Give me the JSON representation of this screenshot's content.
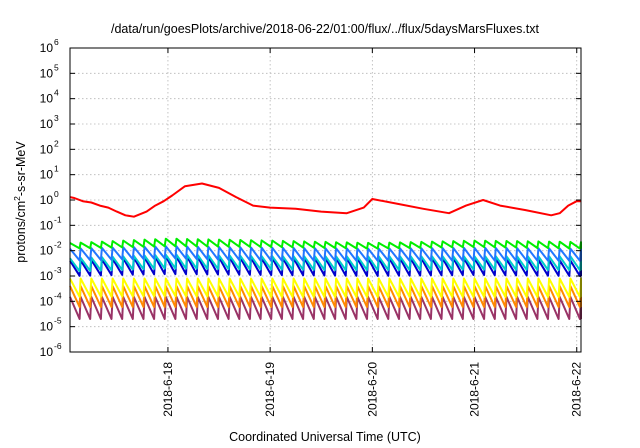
{
  "chart_data": {
    "type": "line",
    "title": "/data/run/goesPlots/archive/2018-06-22/01:00/flux/../flux/5daysMarsFluxes.txt",
    "xlabel": "Coordinated Universal Time (UTC)",
    "ylabel": "protons/cm2-s-sr-MeV",
    "ylabel_parts": {
      "base": "protons/cm",
      "sup": "2",
      "rest": "-s-sr-MeV"
    },
    "yscale": "log",
    "ylim": [
      1e-06,
      1000000.0
    ],
    "y_ticks": [
      {
        "base": "10",
        "exp": "-6",
        "value": 1e-06
      },
      {
        "base": "10",
        "exp": "-5",
        "value": 1e-05
      },
      {
        "base": "10",
        "exp": "-4",
        "value": 0.0001
      },
      {
        "base": "10",
        "exp": "-3",
        "value": 0.001
      },
      {
        "base": "10",
        "exp": "-2",
        "value": 0.01
      },
      {
        "base": "10",
        "exp": "-1",
        "value": 0.1
      },
      {
        "base": "10",
        "exp": "0",
        "value": 1
      },
      {
        "base": "10",
        "exp": "1",
        "value": 10
      },
      {
        "base": "10",
        "exp": "2",
        "value": 100
      },
      {
        "base": "10",
        "exp": "3",
        "value": 1000
      },
      {
        "base": "10",
        "exp": "4",
        "value": 10000
      },
      {
        "base": "10",
        "exp": "5",
        "value": 100000
      },
      {
        "base": "10",
        "exp": "6",
        "value": 1000000
      }
    ],
    "xlim": [
      "2018-06-17 01:00",
      "2018-06-22 01:00"
    ],
    "x_ticks": [
      {
        "label": "2018-6-18",
        "value": "2018-06-18 00:00"
      },
      {
        "label": "2018-6-19",
        "value": "2018-06-19 00:00"
      },
      {
        "label": "2018-6-20",
        "value": "2018-06-20 00:00"
      },
      {
        "label": "2018-6-21",
        "value": "2018-06-21 00:00"
      },
      {
        "label": "2018-6-22",
        "value": "2018-06-22 00:00"
      }
    ],
    "grid": true,
    "series": [
      {
        "color": "#ff0000",
        "x": [
          "2018-06-17 01:00",
          "2018-06-17 02:00",
          "2018-06-17 04:00",
          "2018-06-17 06:00",
          "2018-06-17 08:00",
          "2018-06-17 10:00",
          "2018-06-17 12:00",
          "2018-06-17 14:00",
          "2018-06-17 16:00",
          "2018-06-17 19:00",
          "2018-06-17 21:00",
          "2018-06-17 23:00",
          "2018-06-18 01:00",
          "2018-06-18 04:00",
          "2018-06-18 08:00",
          "2018-06-18 12:00",
          "2018-06-18 16:00",
          "2018-06-18 20:00",
          "2018-06-19 00:00",
          "2018-06-19 06:00",
          "2018-06-19 12:00",
          "2018-06-19 18:00",
          "2018-06-19 22:00",
          "2018-06-20 00:00",
          "2018-06-20 06:00",
          "2018-06-20 12:00",
          "2018-06-20 18:00",
          "2018-06-20 22:00",
          "2018-06-21 02:00",
          "2018-06-21 06:00",
          "2018-06-21 12:00",
          "2018-06-21 18:00",
          "2018-06-21 20:00",
          "2018-06-21 22:00",
          "2018-06-22 00:00",
          "2018-06-22 01:00"
        ],
        "y": [
          1.3,
          1.2,
          0.9,
          0.8,
          0.6,
          0.5,
          0.35,
          0.25,
          0.22,
          0.35,
          0.6,
          0.9,
          1.5,
          3.5,
          4.5,
          3,
          1.3,
          0.6,
          0.5,
          0.45,
          0.35,
          0.3,
          0.5,
          1.1,
          0.7,
          0.45,
          0.3,
          0.6,
          1.0,
          0.6,
          0.4,
          0.25,
          0.3,
          0.6,
          0.9,
          0.9
        ]
      },
      {
        "color": "#00ee00",
        "x": [
          "2018-06-17 01:00",
          "2018-06-18 00:00",
          "2018-06-19 00:00",
          "2018-06-20 00:00",
          "2018-06-21 00:00",
          "2018-06-22 01:00"
        ],
        "y": [
          0.02,
          0.03,
          0.025,
          0.02,
          0.025,
          0.022
        ],
        "low": [
          0.012,
          0.015,
          0.014,
          0.012,
          0.014,
          0.012
        ],
        "period_hours": 2.5
      },
      {
        "color": "#2277ff",
        "x": [
          "2018-06-17 01:00",
          "2018-06-18 00:00",
          "2018-06-19 00:00",
          "2018-06-20 00:00",
          "2018-06-21 00:00",
          "2018-06-22 01:00"
        ],
        "y": [
          0.012,
          0.015,
          0.013,
          0.012,
          0.013,
          0.012
        ],
        "low": [
          0.004,
          0.005,
          0.004,
          0.004,
          0.004,
          0.004
        ],
        "period_hours": 2.5
      },
      {
        "color": "#00cccc",
        "x": [
          "2018-06-17 01:00",
          "2018-06-18 00:00",
          "2018-06-19 00:00",
          "2018-06-20 00:00",
          "2018-06-21 00:00",
          "2018-06-22 01:00"
        ],
        "y": [
          0.005,
          0.007,
          0.006,
          0.006,
          0.006,
          0.006
        ],
        "low": [
          0.0015,
          0.002,
          0.0018,
          0.0017,
          0.0018,
          0.0017
        ],
        "period_hours": 2.5
      },
      {
        "color": "#0000cc",
        "x": [
          "2018-06-17 01:00",
          "2018-06-18 00:00",
          "2018-06-19 00:00",
          "2018-06-20 00:00",
          "2018-06-21 00:00",
          "2018-06-22 01:00"
        ],
        "y": [
          0.004,
          0.006,
          0.005,
          0.005,
          0.005,
          0.004
        ],
        "low": [
          0.001,
          0.0012,
          0.0011,
          0.001,
          0.0011,
          0.001
        ],
        "period_hours": 2.5
      },
      {
        "color": "#ffff00",
        "x": [
          "2018-06-17 01:00",
          "2018-06-18 00:00",
          "2018-06-19 00:00",
          "2018-06-20 00:00",
          "2018-06-21 00:00",
          "2018-06-22 01:00"
        ],
        "y": [
          0.0008,
          0.0008,
          0.0008,
          0.0008,
          0.0008,
          0.0008
        ],
        "low": [
          0.00015,
          0.00016,
          0.00015,
          0.00015,
          0.00015,
          0.00015
        ],
        "period_hours": 2.5
      },
      {
        "color": "#ff8800",
        "x": [
          "2018-06-17 01:00",
          "2018-06-18 00:00",
          "2018-06-19 00:00",
          "2018-06-20 00:00",
          "2018-06-21 00:00",
          "2018-06-22 01:00"
        ],
        "y": [
          0.0004,
          0.0004,
          0.0004,
          0.0004,
          0.0004,
          0.0004
        ],
        "low": [
          6e-05,
          6e-05,
          6e-05,
          6e-05,
          6e-05,
          6e-05
        ],
        "period_hours": 2.5
      },
      {
        "color": "#993366",
        "x": [
          "2018-06-17 01:00",
          "2018-06-18 00:00",
          "2018-06-19 00:00",
          "2018-06-20 00:00",
          "2018-06-21 00:00",
          "2018-06-22 01:00"
        ],
        "y": [
          0.00015,
          0.00015,
          0.00015,
          0.00015,
          0.00015,
          0.00015
        ],
        "low": [
          2e-05,
          2e-05,
          2e-05,
          2e-05,
          2e-05,
          2e-05
        ],
        "period_hours": 2.5
      }
    ]
  }
}
